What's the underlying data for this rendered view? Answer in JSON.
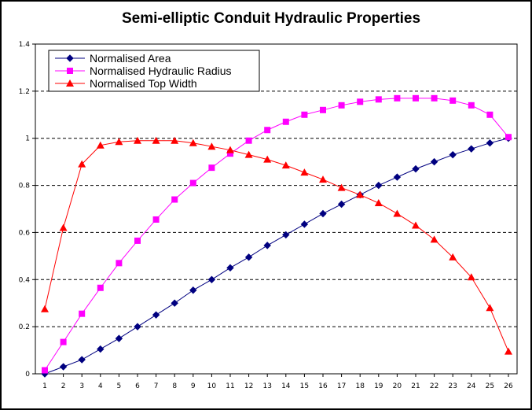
{
  "chart_data": {
    "type": "line",
    "title": "Semi-elliptic Conduit Hydraulic Properties",
    "xlabel": "",
    "ylabel": "",
    "ylim": [
      0,
      1.4
    ],
    "yticks": [
      "0",
      "0.2",
      "0.4",
      "0.6",
      "0.8",
      "1",
      "1.2",
      "1.4"
    ],
    "categories": [
      "1",
      "2",
      "3",
      "4",
      "5",
      "6",
      "7",
      "8",
      "9",
      "10",
      "11",
      "12",
      "13",
      "14",
      "15",
      "16",
      "17",
      "18",
      "19",
      "20",
      "21",
      "22",
      "23",
      "24",
      "25",
      "26"
    ],
    "grid": "horizontal dashed at 0.2, 0.4, 0.6, 0.8, 1, 1.2",
    "legend_position": "top-left",
    "series": [
      {
        "name": "Normalised Area",
        "color": "#000080",
        "marker": "diamond",
        "values": [
          0,
          0.03,
          0.06,
          0.105,
          0.15,
          0.2,
          0.25,
          0.3,
          0.355,
          0.4,
          0.45,
          0.495,
          0.545,
          0.59,
          0.635,
          0.68,
          0.72,
          0.76,
          0.8,
          0.835,
          0.87,
          0.9,
          0.93,
          0.955,
          0.98,
          1.0
        ]
      },
      {
        "name": "Normalised Hydraulic Radius",
        "color": "#ff00ff",
        "marker": "square",
        "values": [
          0.015,
          0.135,
          0.255,
          0.365,
          0.47,
          0.565,
          0.655,
          0.74,
          0.81,
          0.875,
          0.935,
          0.99,
          1.035,
          1.07,
          1.1,
          1.12,
          1.14,
          1.155,
          1.165,
          1.17,
          1.17,
          1.17,
          1.16,
          1.14,
          1.1,
          1.005
        ]
      },
      {
        "name": "Normalised Top Width",
        "color": "#ff0000",
        "marker": "triangle",
        "values": [
          0.275,
          0.62,
          0.89,
          0.97,
          0.985,
          0.99,
          0.99,
          0.99,
          0.98,
          0.965,
          0.95,
          0.93,
          0.91,
          0.885,
          0.855,
          0.825,
          0.79,
          0.76,
          0.725,
          0.68,
          0.63,
          0.57,
          0.495,
          0.41,
          0.28,
          0.095
        ]
      }
    ]
  }
}
